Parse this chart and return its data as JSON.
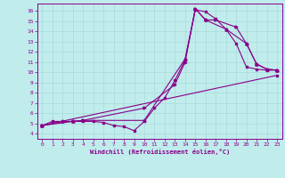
{
  "title": "",
  "xlabel": "Windchill (Refroidissement éolien,°C)",
  "bg_color": "#c0ecec",
  "line_color": "#880088",
  "xlim": [
    -0.5,
    23.5
  ],
  "ylim": [
    3.5,
    16.7
  ],
  "xticks": [
    0,
    1,
    2,
    3,
    4,
    5,
    6,
    7,
    8,
    9,
    10,
    11,
    12,
    13,
    14,
    15,
    16,
    17,
    18,
    19,
    20,
    21,
    22,
    23
  ],
  "yticks": [
    4,
    5,
    6,
    7,
    8,
    9,
    10,
    11,
    12,
    13,
    14,
    15,
    16
  ],
  "line1_x": [
    0,
    1,
    2,
    3,
    4,
    5,
    6,
    7,
    8,
    9,
    10,
    11,
    12,
    13,
    14,
    15,
    16,
    17,
    18,
    19,
    20,
    21,
    22,
    23
  ],
  "line1_y": [
    4.8,
    5.2,
    5.2,
    5.2,
    5.2,
    5.2,
    5.1,
    4.8,
    4.7,
    4.3,
    5.2,
    6.5,
    7.5,
    9.2,
    11.2,
    16.1,
    15.9,
    15.2,
    14.2,
    12.8,
    10.5,
    10.3,
    10.2,
    10.2
  ],
  "line2_x": [
    0,
    2,
    3,
    4,
    10,
    14,
    15,
    16,
    18,
    20,
    21,
    22,
    23
  ],
  "line2_y": [
    4.8,
    5.2,
    5.2,
    5.3,
    5.3,
    11.3,
    16.2,
    15.1,
    14.2,
    12.8,
    10.8,
    10.3,
    10.2
  ],
  "line3_x": [
    0,
    3,
    4,
    10,
    13,
    14,
    15,
    16,
    17,
    19,
    20,
    21,
    22,
    23
  ],
  "line3_y": [
    4.8,
    5.2,
    5.3,
    6.5,
    8.8,
    11.0,
    16.2,
    15.1,
    15.1,
    14.4,
    12.8,
    10.8,
    10.3,
    10.2
  ],
  "line4_x": [
    0,
    23
  ],
  "line4_y": [
    4.8,
    9.7
  ]
}
